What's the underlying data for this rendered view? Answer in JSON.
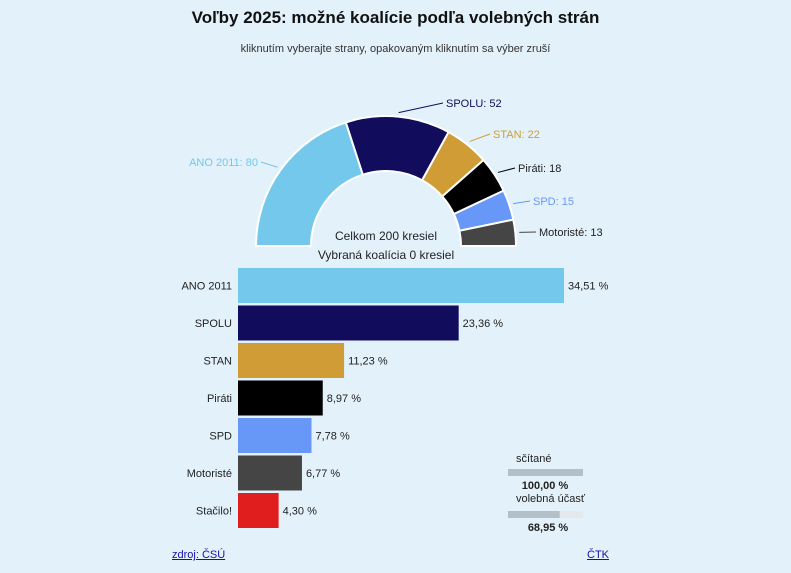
{
  "header": {
    "title": "Voľby 2025: možné koalície podľa volebných strán",
    "subtitle": "kliknutím vyberajte strany, opakovaným kliknutím sa výber zruší"
  },
  "summary": {
    "total_label": "Celkom 200 kresiel",
    "coalition_label": "Vybraná koalícia 0 kresiel"
  },
  "chart_data": [
    {
      "type": "pie",
      "variant": "semicircle-donut",
      "slices": [
        {
          "name": "ANO 2011",
          "value": 80,
          "label": "ANO 2011: 80",
          "color": "#74c8eb"
        },
        {
          "name": "SPOLU",
          "value": 52,
          "label": "SPOLU: 52",
          "color": "#110d5c"
        },
        {
          "name": "STAN",
          "value": 22,
          "label": "STAN: 22",
          "color": "#cf9c35"
        },
        {
          "name": "Piráti",
          "value": 18,
          "label": "Piráti: 18",
          "color": "#000000"
        },
        {
          "name": "SPD",
          "value": 15,
          "label": "SPD: 15",
          "color": "#6798f7"
        },
        {
          "name": "Motoristé",
          "value": 13,
          "label": "Motoristé: 13",
          "color": "#454545"
        }
      ]
    },
    {
      "type": "bar",
      "orientation": "horizontal",
      "categories": [
        "ANO 2011",
        "SPOLU",
        "STAN",
        "Piráti",
        "SPD",
        "Motoristé",
        "Stačilo!"
      ],
      "values": [
        34.51,
        23.36,
        11.23,
        8.97,
        7.78,
        6.77,
        4.3
      ],
      "value_labels": [
        "34,51 %",
        "23,36 %",
        "11,23 %",
        "8,97 %",
        "7,78 %",
        "6,77 %",
        "4,30 %"
      ],
      "colors": [
        "#74c8eb",
        "#110d5c",
        "#cf9c35",
        "#000000",
        "#6798f7",
        "#454545",
        "#e01e1e"
      ],
      "xlim": [
        0,
        34.51
      ]
    }
  ],
  "progress": {
    "counted_label": "sčítané",
    "counted_value": "100,00 %",
    "counted_fraction": 1.0,
    "turnout_label": "volebná účasť",
    "turnout_value": "68,95 %",
    "turnout_fraction": 0.6895
  },
  "footer": {
    "source": "zdroj: ČSÚ",
    "agency": "ČTK"
  }
}
